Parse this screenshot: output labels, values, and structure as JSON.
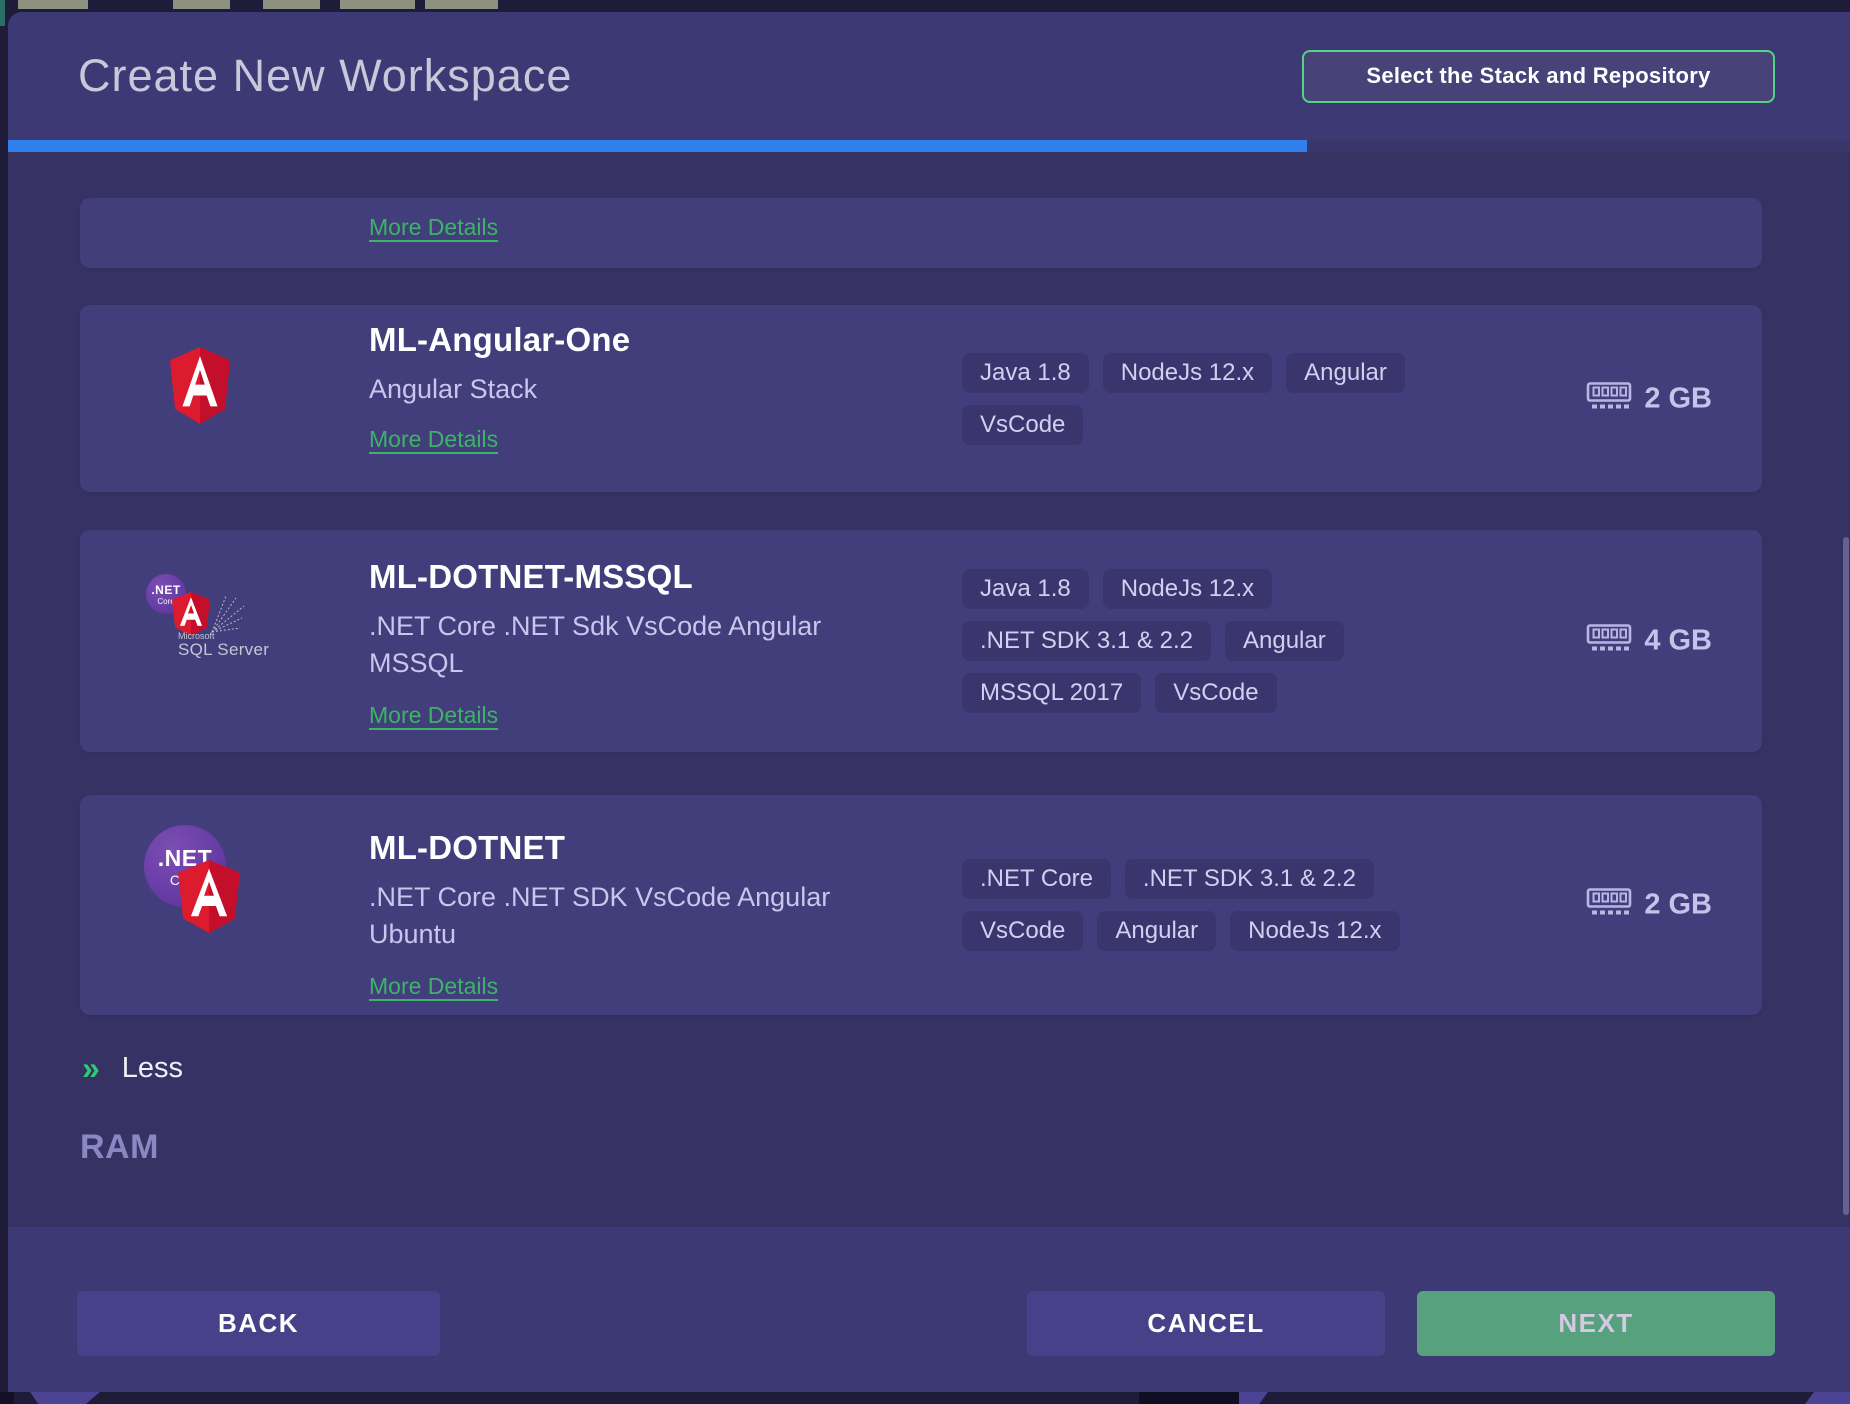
{
  "header": {
    "title": "Create New Workspace",
    "step_label": "Select the Stack and Repository",
    "progress_width": "70.5%"
  },
  "labels": {
    "more_details": "More Details"
  },
  "logos": {
    "dotnet_net": ".NET",
    "dotnet_core": "Core",
    "sql_microsoft": "Microsoft",
    "sql_server": "SQL Server"
  },
  "stacks": [
    {
      "name": "ML-Angular-One",
      "description": "Angular Stack",
      "tags": [
        "Java 1.8",
        "NodeJs 12.x",
        "Angular",
        "VsCode"
      ],
      "ram": "2 GB"
    },
    {
      "name": "ML-DOTNET-MSSQL",
      "description": ".NET Core .NET Sdk VsCode Angular MSSQL",
      "tags": [
        "Java 1.8",
        "NodeJs 12.x",
        ".NET SDK 3.1 & 2.2",
        "Angular",
        "MSSQL 2017",
        "VsCode"
      ],
      "ram": "4 GB"
    },
    {
      "name": "ML-DOTNET",
      "description": ".NET Core .NET SDK VsCode Angular Ubuntu",
      "tags": [
        ".NET Core",
        ".NET SDK 3.1 & 2.2",
        "VsCode",
        "Angular",
        "NodeJs 12.x"
      ],
      "ram": "2 GB"
    }
  ],
  "less_toggle": {
    "icon": "»",
    "label": "Less"
  },
  "ram_section_label": "RAM",
  "footer": {
    "back_label": "BACK",
    "cancel_label": "CANCEL",
    "next_label": "NEXT"
  },
  "colors": {
    "accent_green": "#57d283",
    "link_green": "#3db368",
    "progress_blue": "#2e80ec",
    "next_button_green": "#57a17e",
    "card_bg": "#423d7b",
    "page_bg": "#373264"
  }
}
